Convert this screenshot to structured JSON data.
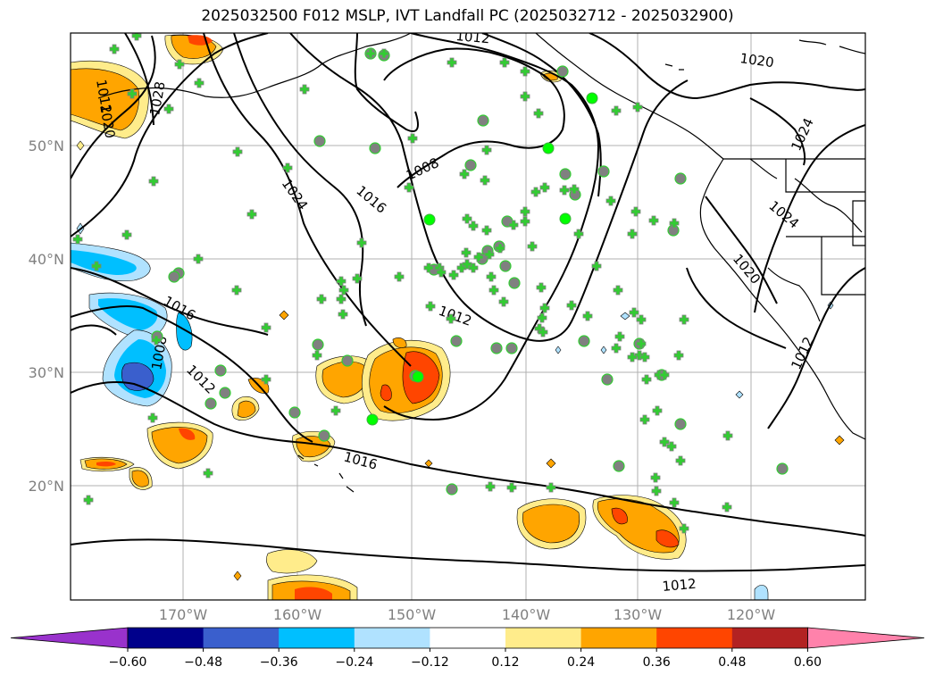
{
  "title": "2025032500 F012 MSLP, IVT Landfall PC (2025032712 - 2025032900)",
  "latitude_labels": [
    "50°N",
    "40°N",
    "30°N",
    "20°N"
  ],
  "longitude_labels": [
    "170°W",
    "160°W",
    "150°W",
    "140°W",
    "130°W",
    "120°W"
  ],
  "colorbar": {
    "ticks": [
      "−0.60",
      "−0.48",
      "−0.36",
      "−0.24",
      "−0.12",
      "0.12",
      "0.24",
      "0.36",
      "0.48",
      "0.60"
    ],
    "colors": [
      "#9932cc",
      "#00008b",
      "#3a5fcd",
      "#00bfff",
      "#b0e2ff",
      "#ffffff",
      "#ffec8b",
      "#ffa500",
      "#ff4500",
      "#b22222",
      "#ff82ab"
    ]
  },
  "isobars": {
    "labels": [
      "1012",
      "1020",
      "1008",
      "1016",
      "1024",
      "1028",
      "1016",
      "1020",
      "1020",
      "1024",
      "1024",
      "1012",
      "1008",
      "1012",
      "1016",
      "1012",
      "1012"
    ]
  },
  "marker_colors": {
    "plus": "#32cd32",
    "dot_gray": "#808080",
    "dot_green": "#00ff00",
    "land_outline": "#000000"
  }
}
